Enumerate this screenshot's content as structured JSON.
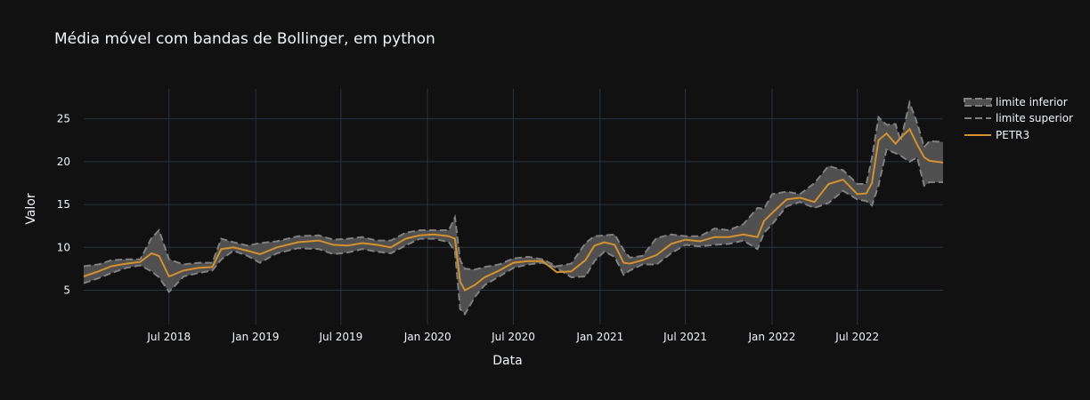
{
  "chart_data": {
    "type": "line",
    "title": "Média móvel com bandas de Bollinger, em python",
    "xlabel": "Data",
    "ylabel": "Valor",
    "x_range": [
      "2018-01-01",
      "2022-12-30"
    ],
    "ylim": [
      1,
      28.5
    ],
    "x_ticks": [
      {
        "date": "2018-07-01",
        "label": "Jul 2018"
      },
      {
        "date": "2019-01-01",
        "label": "Jan 2019"
      },
      {
        "date": "2019-07-01",
        "label": "Jul 2019"
      },
      {
        "date": "2020-01-01",
        "label": "Jan 2020"
      },
      {
        "date": "2020-07-01",
        "label": "Jul 2020"
      },
      {
        "date": "2021-01-01",
        "label": "Jan 2021"
      },
      {
        "date": "2021-07-01",
        "label": "Jul 2021"
      },
      {
        "date": "2022-01-01",
        "label": "Jan 2022"
      },
      {
        "date": "2022-07-01",
        "label": "Jul 2022"
      }
    ],
    "y_ticks": [
      5,
      10,
      15,
      20,
      25
    ],
    "grid": true,
    "legend_position": "top-right",
    "colors": {
      "background": "#111111",
      "grid": "#283442",
      "band_fill": "#505050",
      "band_line": "#808080",
      "ma_line": "#d4912c",
      "text": "#f2f5fa"
    },
    "series": [
      {
        "name": "limite inferior",
        "x": [
          "2018-01-01",
          "2018-02-01",
          "2018-03-01",
          "2018-04-01",
          "2018-05-01",
          "2018-05-25",
          "2018-06-10",
          "2018-07-01",
          "2018-08-01",
          "2018-09-01",
          "2018-10-01",
          "2018-10-20",
          "2018-11-15",
          "2018-12-15",
          "2019-01-10",
          "2019-02-15",
          "2019-04-01",
          "2019-05-15",
          "2019-06-15",
          "2019-07-15",
          "2019-08-15",
          "2019-09-15",
          "2019-10-15",
          "2019-11-15",
          "2019-12-15",
          "2020-01-15",
          "2020-02-15",
          "2020-02-28",
          "2020-03-10",
          "2020-03-20",
          "2020-04-10",
          "2020-05-01",
          "2020-06-01",
          "2020-07-01",
          "2020-08-01",
          "2020-09-01",
          "2020-10-01",
          "2020-11-01",
          "2020-12-01",
          "2020-12-20",
          "2021-01-10",
          "2021-02-01",
          "2021-02-20",
          "2021-03-05",
          "2021-04-01",
          "2021-05-01",
          "2021-06-01",
          "2021-07-01",
          "2021-08-01",
          "2021-09-01",
          "2021-10-01",
          "2021-11-01",
          "2021-12-01",
          "2021-12-15",
          "2022-01-01",
          "2022-02-01",
          "2022-03-01",
          "2022-04-01",
          "2022-05-01",
          "2022-06-01",
          "2022-07-01",
          "2022-07-20",
          "2022-08-01",
          "2022-08-15",
          "2022-09-01",
          "2022-09-20",
          "2022-10-01",
          "2022-10-20",
          "2022-11-05",
          "2022-11-20",
          "2022-12-01",
          "2022-12-30"
        ],
        "values": [
          5.8,
          6.4,
          7,
          7.6,
          7.9,
          7.2,
          6.5,
          4.8,
          6.6,
          7,
          7.3,
          8.6,
          9.6,
          9,
          8.2,
          9.3,
          9.9,
          9.8,
          9.2,
          9.4,
          9.8,
          9.5,
          9.3,
          10.2,
          11,
          11,
          10.6,
          9.5,
          2.8,
          2.2,
          4.2,
          5.6,
          6.6,
          7.6,
          8,
          8.2,
          7.6,
          6.5,
          6.6,
          8.4,
          9.5,
          8.9,
          6.8,
          7.3,
          8,
          8,
          9.3,
          10.3,
          10.1,
          10.3,
          10.4,
          10.8,
          9.8,
          11.7,
          12.7,
          14.8,
          15.3,
          14.6,
          15.2,
          16.6,
          15.6,
          15.4,
          14.9,
          17.2,
          21.4,
          21,
          20.7,
          20,
          20.5,
          17.2,
          17.6,
          17.6
        ]
      },
      {
        "name": "limite superior",
        "x": [
          "2018-01-01",
          "2018-02-01",
          "2018-03-01",
          "2018-04-01",
          "2018-05-01",
          "2018-05-25",
          "2018-06-10",
          "2018-07-01",
          "2018-08-01",
          "2018-09-01",
          "2018-10-01",
          "2018-10-20",
          "2018-11-15",
          "2018-12-15",
          "2019-01-10",
          "2019-02-15",
          "2019-04-01",
          "2019-05-15",
          "2019-06-15",
          "2019-07-15",
          "2019-08-15",
          "2019-09-15",
          "2019-10-15",
          "2019-11-15",
          "2019-12-15",
          "2020-01-15",
          "2020-02-15",
          "2020-02-28",
          "2020-03-10",
          "2020-03-20",
          "2020-04-10",
          "2020-05-01",
          "2020-06-01",
          "2020-07-01",
          "2020-08-01",
          "2020-09-01",
          "2020-10-01",
          "2020-11-01",
          "2020-12-01",
          "2020-12-20",
          "2021-01-10",
          "2021-02-01",
          "2021-02-20",
          "2021-03-05",
          "2021-04-01",
          "2021-05-01",
          "2021-06-01",
          "2021-07-01",
          "2021-08-01",
          "2021-09-01",
          "2021-10-01",
          "2021-11-01",
          "2021-12-01",
          "2021-12-15",
          "2022-01-01",
          "2022-02-01",
          "2022-03-01",
          "2022-04-01",
          "2022-05-01",
          "2022-06-01",
          "2022-07-01",
          "2022-07-20",
          "2022-08-01",
          "2022-08-15",
          "2022-09-01",
          "2022-09-20",
          "2022-10-01",
          "2022-10-20",
          "2022-11-05",
          "2022-11-20",
          "2022-12-01",
          "2022-12-30"
        ],
        "values": [
          7.8,
          8,
          8.5,
          8.6,
          8.6,
          11.1,
          12,
          8.6,
          8,
          8.2,
          8.2,
          11,
          10.6,
          10.2,
          10.5,
          10.7,
          11.3,
          11.4,
          10.9,
          11,
          11.2,
          10.8,
          10.8,
          11.7,
          12,
          12,
          12,
          13.5,
          8.5,
          7.5,
          7.4,
          7.7,
          8,
          8.7,
          8.9,
          8.6,
          7.8,
          8.1,
          10.5,
          11.3,
          11.4,
          11.5,
          9.7,
          8.8,
          9,
          11.1,
          11.5,
          11.3,
          11.3,
          12.2,
          12,
          12.7,
          14.6,
          14.5,
          16.2,
          16.5,
          16.2,
          17.5,
          19.5,
          19,
          17.4,
          17.4,
          20.4,
          25.2,
          24.3,
          24.4,
          22.4,
          26.9,
          24.5,
          21.7,
          22.4,
          22.3
        ]
      },
      {
        "name": "PETR3",
        "x": [
          "2018-01-01",
          "2018-02-01",
          "2018-03-01",
          "2018-04-01",
          "2018-05-01",
          "2018-05-25",
          "2018-06-10",
          "2018-07-01",
          "2018-08-01",
          "2018-09-01",
          "2018-10-01",
          "2018-10-20",
          "2018-11-15",
          "2018-12-15",
          "2019-01-10",
          "2019-02-15",
          "2019-04-01",
          "2019-05-15",
          "2019-06-15",
          "2019-07-15",
          "2019-08-15",
          "2019-09-15",
          "2019-10-15",
          "2019-11-15",
          "2019-12-15",
          "2020-01-15",
          "2020-02-15",
          "2020-02-28",
          "2020-03-10",
          "2020-03-20",
          "2020-04-10",
          "2020-05-01",
          "2020-06-01",
          "2020-07-01",
          "2020-08-01",
          "2020-09-01",
          "2020-10-01",
          "2020-11-01",
          "2020-12-01",
          "2020-12-20",
          "2021-01-10",
          "2021-02-01",
          "2021-02-20",
          "2021-03-05",
          "2021-04-01",
          "2021-05-01",
          "2021-06-01",
          "2021-07-01",
          "2021-08-01",
          "2021-09-01",
          "2021-10-01",
          "2021-11-01",
          "2021-12-01",
          "2021-12-15",
          "2022-01-01",
          "2022-02-01",
          "2022-03-01",
          "2022-04-01",
          "2022-05-01",
          "2022-06-01",
          "2022-07-01",
          "2022-07-20",
          "2022-08-01",
          "2022-08-15",
          "2022-09-01",
          "2022-09-20",
          "2022-10-01",
          "2022-10-20",
          "2022-11-05",
          "2022-11-20",
          "2022-12-01",
          "2022-12-30"
        ],
        "values": [
          6.6,
          7.2,
          7.8,
          8.1,
          8.3,
          9.3,
          9,
          6.6,
          7.3,
          7.6,
          7.7,
          9.8,
          10,
          9.6,
          9.2,
          10,
          10.6,
          10.8,
          10.3,
          10.2,
          10.5,
          10.3,
          10,
          11,
          11.4,
          11.5,
          11.3,
          11,
          6,
          5,
          5.6,
          6.5,
          7.3,
          8.2,
          8.4,
          8.4,
          7.1,
          7.2,
          8.5,
          10.2,
          10.6,
          10.3,
          8.2,
          8.1,
          8.5,
          9.1,
          10.4,
          10.9,
          10.7,
          11.2,
          11.2,
          11.5,
          11.2,
          13.1,
          14,
          15.6,
          15.8,
          15.3,
          17.4,
          17.9,
          16.2,
          16.3,
          17.5,
          22.5,
          23.3,
          22.1,
          22.8,
          23.8,
          22,
          20.5,
          20.1,
          19.9
        ]
      }
    ]
  }
}
